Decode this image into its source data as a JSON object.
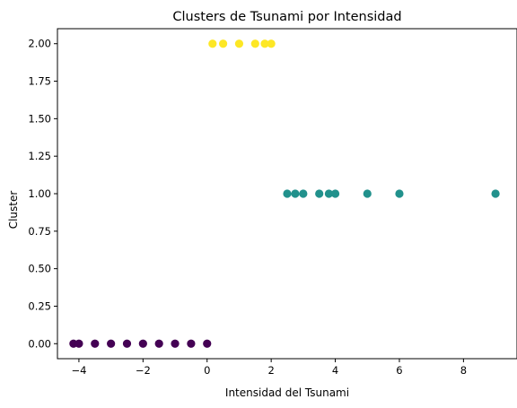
{
  "chart_data": {
    "type": "scatter",
    "title": "Clusters de Tsunami por Intensidad",
    "xlabel": "Intensidad del Tsunami",
    "ylabel": "Cluster",
    "xlim": [
      -4.67,
      9.67
    ],
    "ylim": [
      -0.1,
      2.1
    ],
    "xticks": [
      -4,
      -2,
      0,
      2,
      4,
      6,
      8
    ],
    "xtick_labels": [
      "−4",
      "−2",
      "0",
      "2",
      "4",
      "6",
      "8"
    ],
    "yticks": [
      0,
      0.25,
      0.5,
      0.75,
      1.0,
      1.25,
      1.5,
      1.75,
      2.0
    ],
    "ytick_labels": [
      "0.00",
      "0.25",
      "0.50",
      "0.75",
      "1.00",
      "1.25",
      "1.50",
      "1.75",
      "2.00"
    ],
    "grid": false,
    "legend": "none",
    "colors": {
      "0": "#440154",
      "1": "#21918c",
      "2": "#fde725"
    },
    "series": [
      {
        "cluster": 0,
        "x": [
          -4.17,
          -4.0,
          -3.5,
          -3.0,
          -2.5,
          -2.0,
          -1.5,
          -1.0,
          -0.5,
          0.0
        ],
        "y": [
          0,
          0,
          0,
          0,
          0,
          0,
          0,
          0,
          0,
          0
        ]
      },
      {
        "cluster": 1,
        "x": [
          2.5,
          2.75,
          3.0,
          3.5,
          3.8,
          4.0,
          5.0,
          6.0,
          9.0
        ],
        "y": [
          1,
          1,
          1,
          1,
          1,
          1,
          1,
          1,
          1
        ]
      },
      {
        "cluster": 2,
        "x": [
          0.17,
          0.5,
          1.0,
          1.5,
          1.8,
          2.0
        ],
        "y": [
          2,
          2,
          2,
          2,
          2,
          2
        ]
      }
    ]
  }
}
